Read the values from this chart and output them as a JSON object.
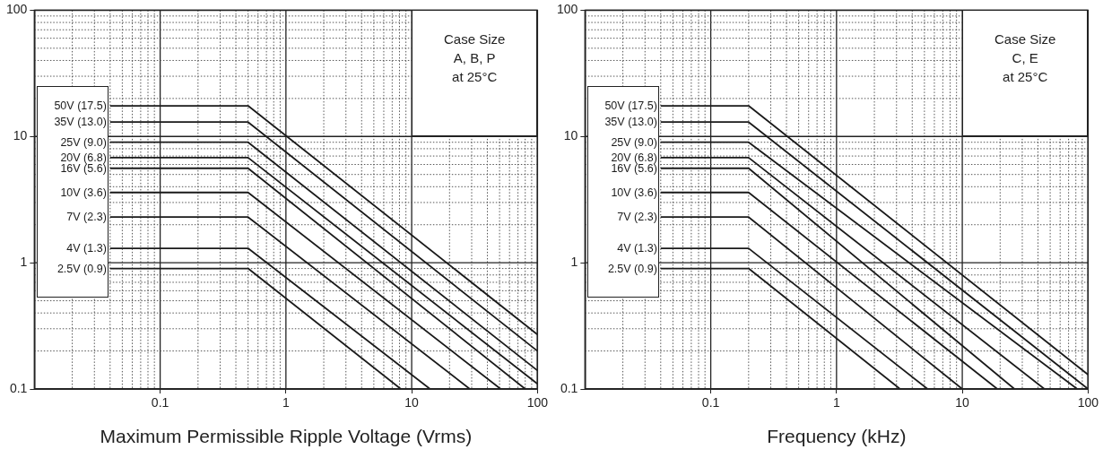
{
  "chart_data": [
    {
      "type": "line",
      "xlabel": "Maximum Permissible Ripple Voltage (Vrms)",
      "log": "xy",
      "grid": true,
      "marker": "none",
      "annotations": [
        "Case Size\nA, B, P\nat 25°C"
      ],
      "xlim": [
        0.01,
        100
      ],
      "ylim": [
        0.1,
        100
      ],
      "xticks": [
        {
          "value": 0.02,
          "label": null
        },
        {
          "value": 0.03,
          "label": null
        },
        {
          "value": 0.04,
          "label": null
        },
        {
          "value": 0.05,
          "label": null
        },
        {
          "value": 0.06,
          "label": null
        },
        {
          "value": 0.07,
          "label": null
        },
        {
          "value": 0.08,
          "label": null
        },
        {
          "value": 0.09,
          "label": null
        },
        0.1,
        {
          "value": 0.2,
          "label": null
        },
        {
          "value": 0.3,
          "label": null
        },
        {
          "value": 0.4,
          "label": null
        },
        {
          "value": 0.5,
          "label": null
        },
        {
          "value": 0.6,
          "label": null
        },
        {
          "value": 0.7,
          "label": null
        },
        {
          "value": 0.8,
          "label": null
        },
        {
          "value": 0.9,
          "label": null
        },
        1,
        {
          "value": 2,
          "label": null
        },
        {
          "value": 3,
          "label": null
        },
        {
          "value": 4,
          "label": null
        },
        {
          "value": 5,
          "label": null
        },
        {
          "value": 6,
          "label": null
        },
        {
          "value": 7,
          "label": null
        },
        {
          "value": 8,
          "label": null
        },
        {
          "value": 9,
          "label": null
        },
        10,
        {
          "value": 20,
          "label": null
        },
        {
          "value": 30,
          "label": null
        },
        {
          "value": 40,
          "label": null
        },
        {
          "value": 50,
          "label": null
        },
        {
          "value": 60,
          "label": null
        },
        {
          "value": 70,
          "label": null
        },
        {
          "value": 80,
          "label": null
        },
        {
          "value": 90,
          "label": null
        },
        100
      ],
      "yticks": [
        0.1,
        {
          "value": 0.2,
          "label": null
        },
        {
          "value": 0.3,
          "label": null
        },
        {
          "value": 0.4,
          "label": null
        },
        {
          "value": 0.5,
          "label": null
        },
        {
          "value": 0.6,
          "label": null
        },
        {
          "value": 0.7,
          "label": null
        },
        {
          "value": 0.8,
          "label": null
        },
        {
          "value": 0.9,
          "label": null
        },
        1,
        {
          "value": 2,
          "label": null
        },
        {
          "value": 3,
          "label": null
        },
        {
          "value": 4,
          "label": null
        },
        {
          "value": 5,
          "label": null
        },
        {
          "value": 6,
          "label": null
        },
        {
          "value": 7,
          "label": null
        },
        {
          "value": 8,
          "label": null
        },
        {
          "value": 9,
          "label": null
        },
        10,
        {
          "value": 20,
          "label": null
        },
        {
          "value": 30,
          "label": null
        },
        {
          "value": 40,
          "label": null
        },
        {
          "value": 50,
          "label": null
        },
        {
          "value": 60,
          "label": null
        },
        {
          "value": 70,
          "label": null
        },
        {
          "value": 80,
          "label": null
        },
        {
          "value": 90,
          "label": null
        },
        100
      ],
      "series": [
        {
          "name": "50V (17.5)",
          "color": "#1a1a1a",
          "x": [
            0.04,
            0.5,
            100
          ],
          "values": [
            17.5,
            17.5,
            0.27
          ]
        },
        {
          "name": "35V (13.0)",
          "color": "#1a1a1a",
          "x": [
            0.04,
            0.5,
            100
          ],
          "values": [
            13,
            13,
            0.2
          ]
        },
        {
          "name": "25V (9.0)",
          "color": "#1a1a1a",
          "x": [
            0.04,
            0.5,
            100
          ],
          "values": [
            9,
            9,
            0.14
          ]
        },
        {
          "name": "20V (6.8)",
          "color": "#1a1a1a",
          "x": [
            0.04,
            0.5,
            100
          ],
          "values": [
            6.8,
            6.8,
            0.11
          ]
        },
        {
          "name": "16V (5.6)",
          "color": "#1a1a1a",
          "x": [
            0.04,
            0.5,
            80
          ],
          "values": [
            5.6,
            5.6,
            0.1
          ]
        },
        {
          "name": "10V (3.6)",
          "color": "#1a1a1a",
          "x": [
            0.04,
            0.5,
            51
          ],
          "values": [
            3.6,
            3.6,
            0.1
          ]
        },
        {
          "name": "7V (2.3)",
          "color": "#1a1a1a",
          "x": [
            0.04,
            0.5,
            29
          ],
          "values": [
            2.3,
            2.3,
            0.1
          ]
        },
        {
          "name": "4V (1.3)",
          "color": "#1a1a1a",
          "x": [
            0.04,
            0.5,
            14
          ],
          "values": [
            1.3,
            1.3,
            0.1
          ]
        },
        {
          "name": "2.5V (0.9)",
          "color": "#1a1a1a",
          "x": [
            0.04,
            0.5,
            8.2
          ],
          "values": [
            0.9,
            0.9,
            0.1
          ]
        }
      ]
    },
    {
      "type": "line",
      "xlabel": "Frequency (kHz)",
      "log": "xy",
      "grid": true,
      "marker": "none",
      "annotations": [
        "Case Size\nC, E\nat 25°C"
      ],
      "xlim": [
        0.01,
        100
      ],
      "ylim": [
        0.1,
        100
      ],
      "xticks": [
        {
          "value": 0.02,
          "label": null
        },
        {
          "value": 0.03,
          "label": null
        },
        {
          "value": 0.04,
          "label": null
        },
        {
          "value": 0.05,
          "label": null
        },
        {
          "value": 0.06,
          "label": null
        },
        {
          "value": 0.07,
          "label": null
        },
        {
          "value": 0.08,
          "label": null
        },
        {
          "value": 0.09,
          "label": null
        },
        0.1,
        {
          "value": 0.2,
          "label": null
        },
        {
          "value": 0.3,
          "label": null
        },
        {
          "value": 0.4,
          "label": null
        },
        {
          "value": 0.5,
          "label": null
        },
        {
          "value": 0.6,
          "label": null
        },
        {
          "value": 0.7,
          "label": null
        },
        {
          "value": 0.8,
          "label": null
        },
        {
          "value": 0.9,
          "label": null
        },
        1,
        {
          "value": 2,
          "label": null
        },
        {
          "value": 3,
          "label": null
        },
        {
          "value": 4,
          "label": null
        },
        {
          "value": 5,
          "label": null
        },
        {
          "value": 6,
          "label": null
        },
        {
          "value": 7,
          "label": null
        },
        {
          "value": 8,
          "label": null
        },
        {
          "value": 9,
          "label": null
        },
        10,
        {
          "value": 20,
          "label": null
        },
        {
          "value": 30,
          "label": null
        },
        {
          "value": 40,
          "label": null
        },
        {
          "value": 50,
          "label": null
        },
        {
          "value": 60,
          "label": null
        },
        {
          "value": 70,
          "label": null
        },
        {
          "value": 80,
          "label": null
        },
        {
          "value": 90,
          "label": null
        },
        100
      ],
      "yticks": [
        0.1,
        {
          "value": 0.2,
          "label": null
        },
        {
          "value": 0.3,
          "label": null
        },
        {
          "value": 0.4,
          "label": null
        },
        {
          "value": 0.5,
          "label": null
        },
        {
          "value": 0.6,
          "label": null
        },
        {
          "value": 0.7,
          "label": null
        },
        {
          "value": 0.8,
          "label": null
        },
        {
          "value": 0.9,
          "label": null
        },
        1,
        {
          "value": 2,
          "label": null
        },
        {
          "value": 3,
          "label": null
        },
        {
          "value": 4,
          "label": null
        },
        {
          "value": 5,
          "label": null
        },
        {
          "value": 6,
          "label": null
        },
        {
          "value": 7,
          "label": null
        },
        {
          "value": 8,
          "label": null
        },
        {
          "value": 9,
          "label": null
        },
        10,
        {
          "value": 20,
          "label": null
        },
        {
          "value": 30,
          "label": null
        },
        {
          "value": 40,
          "label": null
        },
        {
          "value": 50,
          "label": null
        },
        {
          "value": 60,
          "label": null
        },
        {
          "value": 70,
          "label": null
        },
        {
          "value": 80,
          "label": null
        },
        {
          "value": 90,
          "label": null
        },
        100
      ],
      "series": [
        {
          "name": "50V (17.5)",
          "color": "#1a1a1a",
          "x": [
            0.04,
            0.2,
            100
          ],
          "values": [
            17.5,
            17.5,
            0.13
          ]
        },
        {
          "name": "35V (13.0)",
          "color": "#1a1a1a",
          "x": [
            0.04,
            0.2,
            100
          ],
          "values": [
            13,
            13,
            0.1
          ]
        },
        {
          "name": "25V (9.0)",
          "color": "#1a1a1a",
          "x": [
            0.04,
            0.2,
            82
          ],
          "values": [
            9,
            9,
            0.1
          ]
        },
        {
          "name": "20V (6.8)",
          "color": "#1a1a1a",
          "x": [
            0.04,
            0.2,
            45
          ],
          "values": [
            6.8,
            6.8,
            0.1
          ]
        },
        {
          "name": "16V (5.6)",
          "color": "#1a1a1a",
          "x": [
            0.04,
            0.2,
            26
          ],
          "values": [
            5.6,
            5.6,
            0.1
          ]
        },
        {
          "name": "10V (3.6)",
          "color": "#1a1a1a",
          "x": [
            0.04,
            0.2,
            19
          ],
          "values": [
            3.6,
            3.6,
            0.1
          ]
        },
        {
          "name": "7V (2.3)",
          "color": "#1a1a1a",
          "x": [
            0.04,
            0.2,
            10
          ],
          "values": [
            2.3,
            2.3,
            0.1
          ]
        },
        {
          "name": "4V (1.3)",
          "color": "#1a1a1a",
          "x": [
            0.04,
            0.2,
            5.3
          ],
          "values": [
            1.3,
            1.3,
            0.1
          ]
        },
        {
          "name": "2.5V (0.9)",
          "color": "#1a1a1a",
          "x": [
            0.04,
            0.2,
            3.2
          ],
          "values": [
            0.9,
            0.9,
            0.1
          ]
        }
      ]
    }
  ]
}
